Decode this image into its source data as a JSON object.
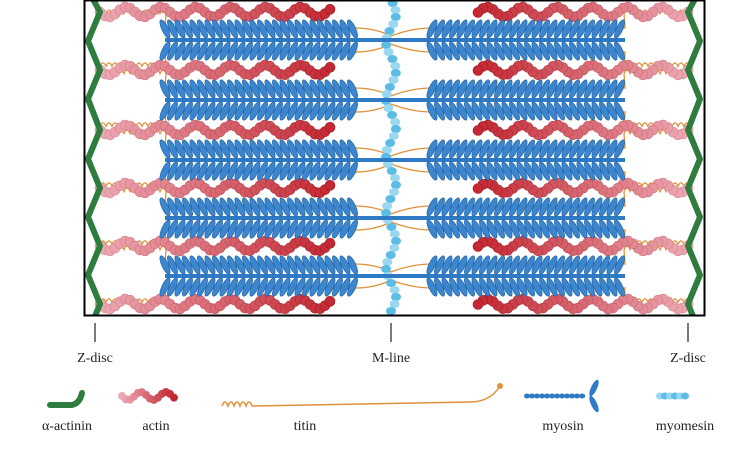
{
  "markers": [
    "Z-disc",
    "M-line",
    "Z-disc"
  ],
  "legend": [
    "α-actinin",
    "actin",
    "titin",
    "myosin",
    "myomesin"
  ]
}
